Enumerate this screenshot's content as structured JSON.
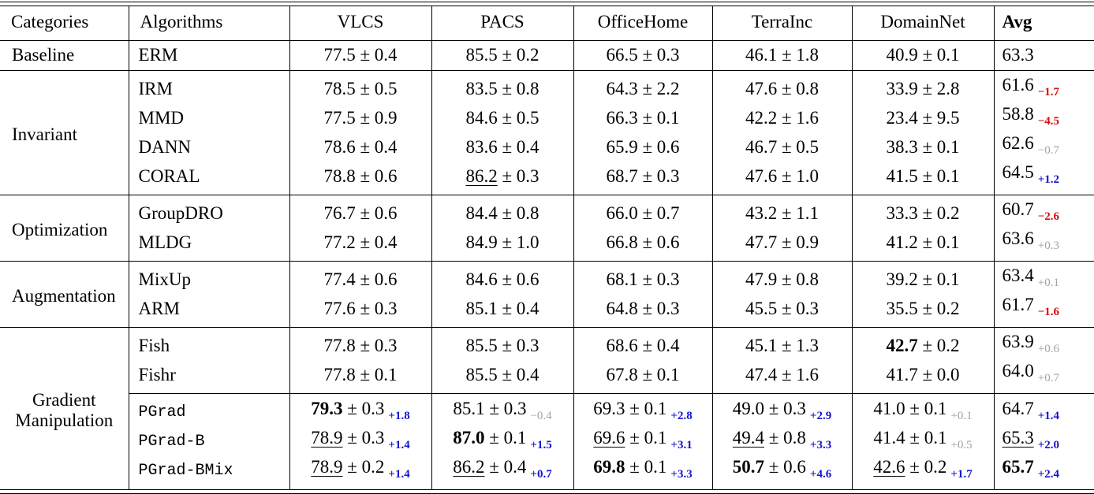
{
  "colors": {
    "gain_blue": "#1414d2",
    "loss_red": "#d80d0d",
    "neutral_gray": "#a3a3a3",
    "rule_black": "#000000"
  },
  "table": {
    "headers": [
      "Categories",
      "Algorithms",
      "VLCS",
      "PACS",
      "OfficeHome",
      "TerraInc",
      "DomainNet",
      "Avg"
    ],
    "sections": [
      {
        "category": "Baseline",
        "rows": [
          {
            "algorithm": "ERM",
            "mono": false,
            "cells": [
              {
                "value": "77.5",
                "std": "0.4"
              },
              {
                "value": "85.5",
                "std": "0.2"
              },
              {
                "value": "66.5",
                "std": "0.3"
              },
              {
                "value": "46.1",
                "std": "1.8"
              },
              {
                "value": "40.9",
                "std": "0.1"
              }
            ],
            "avg": {
              "value": "63.3"
            }
          }
        ]
      },
      {
        "category": "Invariant",
        "rows": [
          {
            "algorithm": "IRM",
            "mono": false,
            "cells": [
              {
                "value": "78.5",
                "std": "0.5"
              },
              {
                "value": "83.5",
                "std": "0.8"
              },
              {
                "value": "64.3",
                "std": "2.2"
              },
              {
                "value": "47.6",
                "std": "0.8"
              },
              {
                "value": "33.9",
                "std": "2.8"
              }
            ],
            "avg": {
              "value": "61.6",
              "sub": "−1.7",
              "sub_color": "red"
            }
          },
          {
            "algorithm": "MMD",
            "mono": false,
            "cells": [
              {
                "value": "77.5",
                "std": "0.9"
              },
              {
                "value": "84.6",
                "std": "0.5"
              },
              {
                "value": "66.3",
                "std": "0.1"
              },
              {
                "value": "42.2",
                "std": "1.6"
              },
              {
                "value": "23.4",
                "std": "9.5"
              }
            ],
            "avg": {
              "value": "58.8",
              "sub": "−4.5",
              "sub_color": "red"
            }
          },
          {
            "algorithm": "DANN",
            "mono": false,
            "cells": [
              {
                "value": "78.6",
                "std": "0.4"
              },
              {
                "value": "83.6",
                "std": "0.4"
              },
              {
                "value": "65.9",
                "std": "0.6"
              },
              {
                "value": "46.7",
                "std": "0.5"
              },
              {
                "value": "38.3",
                "std": "0.1"
              }
            ],
            "avg": {
              "value": "62.6",
              "sub": "−0.7",
              "sub_color": "gray"
            }
          },
          {
            "algorithm": "CORAL",
            "mono": false,
            "cells": [
              {
                "value": "78.8",
                "std": "0.6"
              },
              {
                "value": "86.2",
                "std": "0.3",
                "underline": true
              },
              {
                "value": "68.7",
                "std": "0.3"
              },
              {
                "value": "47.6",
                "std": "1.0"
              },
              {
                "value": "41.5",
                "std": "0.1"
              }
            ],
            "avg": {
              "value": "64.5",
              "sub": "+1.2",
              "sub_color": "blue"
            }
          }
        ]
      },
      {
        "category": "Optimization",
        "rows": [
          {
            "algorithm": "GroupDRO",
            "mono": false,
            "cells": [
              {
                "value": "76.7",
                "std": "0.6"
              },
              {
                "value": "84.4",
                "std": "0.8"
              },
              {
                "value": "66.0",
                "std": "0.7"
              },
              {
                "value": "43.2",
                "std": "1.1"
              },
              {
                "value": "33.3",
                "std": "0.2"
              }
            ],
            "avg": {
              "value": "60.7",
              "sub": "−2.6",
              "sub_color": "red"
            }
          },
          {
            "algorithm": "MLDG",
            "mono": false,
            "cells": [
              {
                "value": "77.2",
                "std": "0.4"
              },
              {
                "value": "84.9",
                "std": "1.0"
              },
              {
                "value": "66.8",
                "std": "0.6"
              },
              {
                "value": "47.7",
                "std": "0.9"
              },
              {
                "value": "41.2",
                "std": "0.1"
              }
            ],
            "avg": {
              "value": "63.6",
              "sub": "+0.3",
              "sub_color": "gray"
            }
          }
        ]
      },
      {
        "category": "Augmentation",
        "rows": [
          {
            "algorithm": "MixUp",
            "mono": false,
            "cells": [
              {
                "value": "77.4",
                "std": "0.6"
              },
              {
                "value": "84.6",
                "std": "0.6"
              },
              {
                "value": "68.1",
                "std": "0.3"
              },
              {
                "value": "47.9",
                "std": "0.8"
              },
              {
                "value": "39.2",
                "std": "0.1"
              }
            ],
            "avg": {
              "value": "63.4",
              "sub": "+0.1",
              "sub_color": "gray"
            }
          },
          {
            "algorithm": "ARM",
            "mono": false,
            "cells": [
              {
                "value": "77.6",
                "std": "0.3"
              },
              {
                "value": "85.1",
                "std": "0.4"
              },
              {
                "value": "64.8",
                "std": "0.3"
              },
              {
                "value": "45.5",
                "std": "0.3"
              },
              {
                "value": "35.5",
                "std": "0.2"
              }
            ],
            "avg": {
              "value": "61.7",
              "sub": "−1.6",
              "sub_color": "red"
            }
          }
        ]
      },
      {
        "category": "Gradient Manipulation",
        "rows": [
          {
            "algorithm": "Fish",
            "mono": false,
            "cells": [
              {
                "value": "77.8",
                "std": "0.3"
              },
              {
                "value": "85.5",
                "std": "0.3"
              },
              {
                "value": "68.6",
                "std": "0.4"
              },
              {
                "value": "45.1",
                "std": "1.3"
              },
              {
                "value": "42.7",
                "std": "0.2",
                "bold": true
              }
            ],
            "avg": {
              "value": "63.9",
              "sub": "+0.6",
              "sub_color": "gray"
            }
          },
          {
            "algorithm": "Fishr",
            "mono": false,
            "cells": [
              {
                "value": "77.8",
                "std": "0.1"
              },
              {
                "value": "85.5",
                "std": "0.4"
              },
              {
                "value": "67.8",
                "std": "0.1"
              },
              {
                "value": "47.4",
                "std": "1.6"
              },
              {
                "value": "41.7",
                "std": "0.0"
              }
            ],
            "avg": {
              "value": "64.0",
              "sub": "+0.7",
              "sub_color": "gray"
            }
          },
          {
            "algorithm": "PGrad",
            "mono": true,
            "rule_above": true,
            "cells": [
              {
                "value": "79.3",
                "std": "0.3",
                "bold": true,
                "sub": "+1.8",
                "sub_color": "blue"
              },
              {
                "value": "85.1",
                "std": "0.3",
                "sub": "−0.4",
                "sub_color": "gray"
              },
              {
                "value": "69.3",
                "std": "0.1",
                "sub": "+2.8",
                "sub_color": "blue"
              },
              {
                "value": "49.0",
                "std": "0.3",
                "sub": "+2.9",
                "sub_color": "blue"
              },
              {
                "value": "41.0",
                "std": "0.1",
                "sub": "+0.1",
                "sub_color": "gray"
              }
            ],
            "avg": {
              "value": "64.7",
              "sub": "+1.4",
              "sub_color": "blue"
            }
          },
          {
            "algorithm": "PGrad-B",
            "mono": true,
            "cells": [
              {
                "value": "78.9",
                "std": "0.3",
                "underline": true,
                "sub": "+1.4",
                "sub_color": "blue"
              },
              {
                "value": "87.0",
                "std": "0.1",
                "bold": true,
                "sub": "+1.5",
                "sub_color": "blue"
              },
              {
                "value": "69.6",
                "std": "0.1",
                "underline": true,
                "sub": "+3.1",
                "sub_color": "blue"
              },
              {
                "value": "49.4",
                "std": "0.8",
                "underline": true,
                "sub": "+3.3",
                "sub_color": "blue"
              },
              {
                "value": "41.4",
                "std": "0.1",
                "sub": "+0.5",
                "sub_color": "gray"
              }
            ],
            "avg": {
              "value": "65.3",
              "underline": true,
              "sub": "+2.0",
              "sub_color": "blue"
            }
          },
          {
            "algorithm": "PGrad-BMix",
            "mono": true,
            "cells": [
              {
                "value": "78.9",
                "std": "0.2",
                "underline": true,
                "sub": "+1.4",
                "sub_color": "blue"
              },
              {
                "value": "86.2",
                "std": "0.4",
                "underline": true,
                "sub": "+0.7",
                "sub_color": "blue"
              },
              {
                "value": "69.8",
                "std": "0.1",
                "bold": true,
                "sub": "+3.3",
                "sub_color": "blue"
              },
              {
                "value": "50.7",
                "std": "0.6",
                "bold": true,
                "sub": "+4.6",
                "sub_color": "blue"
              },
              {
                "value": "42.6",
                "std": "0.2",
                "underline": true,
                "sub": "+1.7",
                "sub_color": "blue"
              }
            ],
            "avg": {
              "value": "65.7",
              "bold": true,
              "sub": "+2.4",
              "sub_color": "blue"
            }
          }
        ]
      }
    ]
  }
}
